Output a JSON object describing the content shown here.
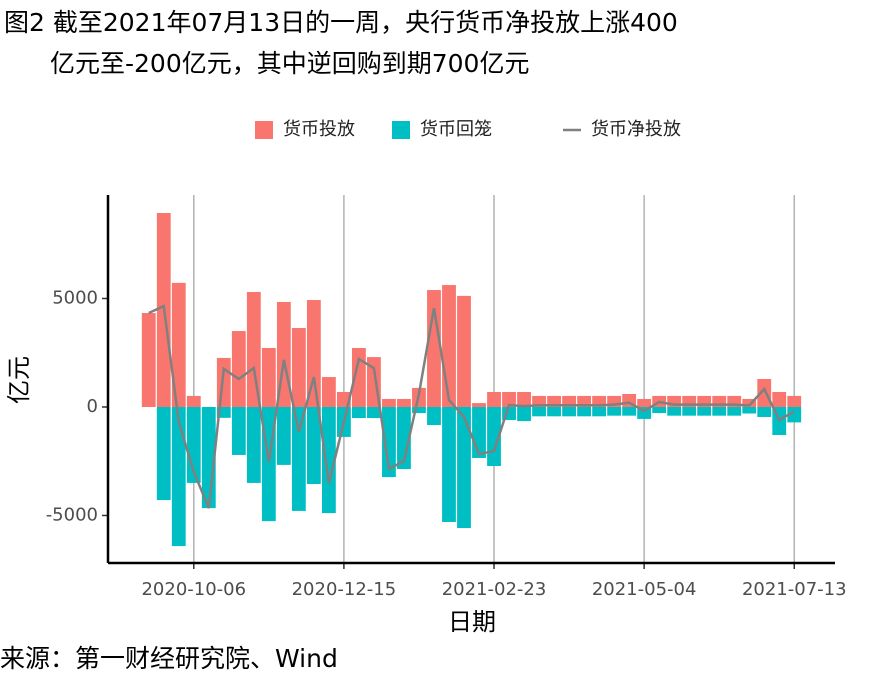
{
  "chart_data": {
    "type": "bar_line",
    "title": [
      "图2 截至2021年07月13日的一周，央行货币净投放上涨400",
      "亿元至-200亿元，其中逆回购到期700亿元"
    ],
    "source": "来源：第一财经研究院、Wind",
    "x_label": "日期",
    "y_label": "亿元",
    "x": [
      "2020-09-15",
      "2020-09-22",
      "2020-09-29",
      "2020-10-06",
      "2020-10-13",
      "2020-10-20",
      "2020-10-27",
      "2020-11-03",
      "2020-11-10",
      "2020-11-17",
      "2020-11-24",
      "2020-12-01",
      "2020-12-08",
      "2020-12-15",
      "2020-12-22",
      "2020-12-29",
      "2021-01-05",
      "2021-01-12",
      "2021-01-19",
      "2021-01-26",
      "2021-02-02",
      "2021-02-09",
      "2021-02-16",
      "2021-02-23",
      "2021-03-02",
      "2021-03-09",
      "2021-03-16",
      "2021-03-23",
      "2021-03-30",
      "2021-04-06",
      "2021-04-13",
      "2021-04-20",
      "2021-04-27",
      "2021-05-04",
      "2021-05-11",
      "2021-05-18",
      "2021-05-25",
      "2021-06-01",
      "2021-06-08",
      "2021-06-15",
      "2021-06-22",
      "2021-06-29",
      "2021-07-06",
      "2021-07-13"
    ],
    "series": [
      {
        "name": "货币投放",
        "kind": "bar",
        "color": "#F8766D",
        "values": [
          4330,
          8940,
          5720,
          510,
          0,
          2260,
          3500,
          5300,
          2720,
          4840,
          3640,
          4930,
          1380,
          690,
          2720,
          2300,
          370,
          370,
          880,
          5390,
          5620,
          5120,
          180,
          690,
          690,
          690,
          510,
          510,
          510,
          510,
          510,
          510,
          600,
          370,
          510,
          510,
          510,
          510,
          510,
          510,
          370,
          1290,
          690,
          510
        ]
      },
      {
        "name": "货币回笼",
        "kind": "bar",
        "color": "#00BFC4",
        "values": [
          0,
          -4290,
          -6410,
          -3500,
          -4660,
          -500,
          -2210,
          -3500,
          -5260,
          -2670,
          -4790,
          -3550,
          -4890,
          -1380,
          -510,
          -510,
          -3230,
          -2860,
          -280,
          -830,
          -5300,
          -5580,
          -2350,
          -2720,
          -600,
          -650,
          -430,
          -430,
          -430,
          -430,
          -430,
          -400,
          -400,
          -550,
          -280,
          -400,
          -400,
          -400,
          -400,
          -400,
          -300,
          -460,
          -1290,
          -710
        ]
      },
      {
        "name": "货币净投放",
        "kind": "line",
        "color": "#808080",
        "values": [
          4330,
          4650,
          -690,
          -2990,
          -4660,
          1760,
          1290,
          1800,
          -2540,
          2170,
          -1150,
          1380,
          -3510,
          -690,
          2210,
          1790,
          -2860,
          -2490,
          600,
          4560,
          320,
          -460,
          -2170,
          -2030,
          90,
          40,
          80,
          80,
          80,
          80,
          80,
          110,
          200,
          -180,
          230,
          110,
          110,
          110,
          110,
          110,
          70,
          830,
          -600,
          -200
        ]
      }
    ],
    "xlim": [
      "2020-08-27",
      "2021-08-01"
    ],
    "xticks": [
      "2020-10-06",
      "2020-12-15",
      "2021-02-23",
      "2021-05-04",
      "2021-07-13"
    ],
    "ylim": [
      -7190,
      9770
    ],
    "yticks": [
      5000,
      0,
      -5000
    ],
    "grid": "x",
    "legend": "top"
  }
}
